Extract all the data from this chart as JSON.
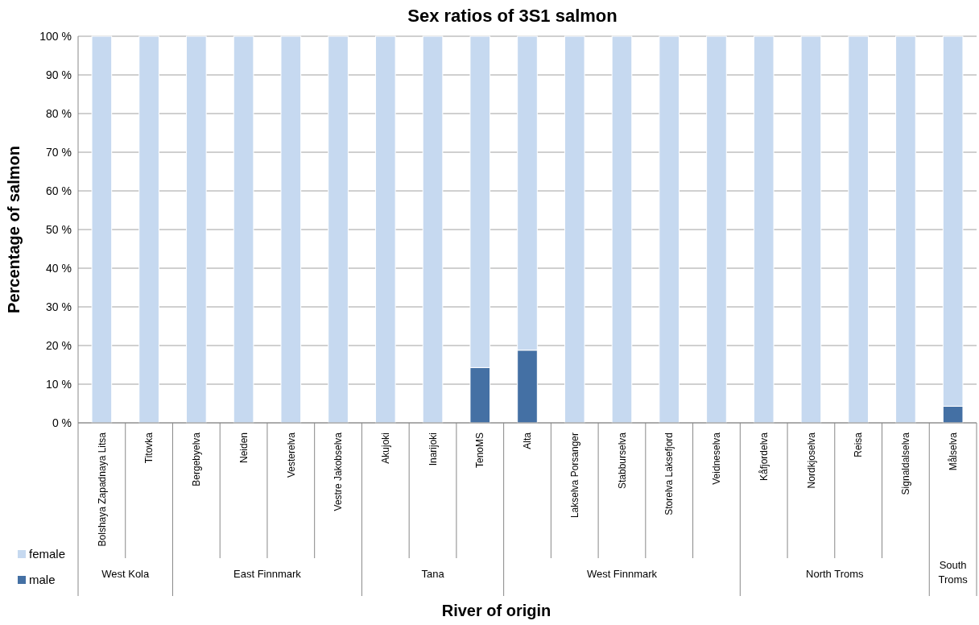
{
  "chart_data": {
    "type": "bar",
    "title": "Sex ratios of 3S1 salmon",
    "xlabel": "River of origin",
    "ylabel": "Percentage of salmon",
    "categories": [
      "Bolshaya Zapadnaya Litsa",
      "Titovka",
      "Bergebyelva",
      "Neiden",
      "Vesterelva",
      "Vestre Jakobselva",
      "Akujoki",
      "Inarijoki",
      "TenoMS",
      "Alta",
      "Lakselva Porsanger",
      "Stabburselva",
      "Storelva Laksefjord",
      "Veidneselva",
      "Kåfjordelva",
      "Nordkjoselva",
      "Reisa",
      "Signaldalselva",
      "Målselva"
    ],
    "stacked": true,
    "series": [
      {
        "name": "male",
        "color": "#4470a4",
        "values": [
          0,
          0,
          0,
          0,
          0,
          0,
          0,
          0,
          14.3,
          18.8,
          0,
          0,
          0,
          0,
          0,
          0,
          0,
          0,
          4.3
        ]
      },
      {
        "name": "female",
        "color": "#c6d9f0",
        "values": [
          100,
          100,
          100,
          100,
          100,
          100,
          100,
          100,
          85.7,
          81.2,
          100,
          100,
          100,
          100,
          100,
          100,
          100,
          100,
          95.7
        ]
      }
    ],
    "ylim": [
      0,
      100
    ],
    "yticks": [
      {
        "value": 0,
        "label": "0 %"
      },
      {
        "value": 10,
        "label": "10 %"
      },
      {
        "value": 20,
        "label": "20 %"
      },
      {
        "value": 30,
        "label": "30 %"
      },
      {
        "value": 40,
        "label": "40 %"
      },
      {
        "value": 50,
        "label": "50 %"
      },
      {
        "value": 60,
        "label": "60 %"
      },
      {
        "value": 70,
        "label": "70 %"
      },
      {
        "value": 80,
        "label": "80 %"
      },
      {
        "value": 90,
        "label": "90 %"
      },
      {
        "value": 100,
        "label": "100 %"
      }
    ],
    "grid": "y",
    "legend": "bottom left",
    "annotations": [
      "West Kola",
      "East Finnmark",
      "Tana",
      "West Finnmark",
      "North Troms",
      "South Troms"
    ]
  }
}
